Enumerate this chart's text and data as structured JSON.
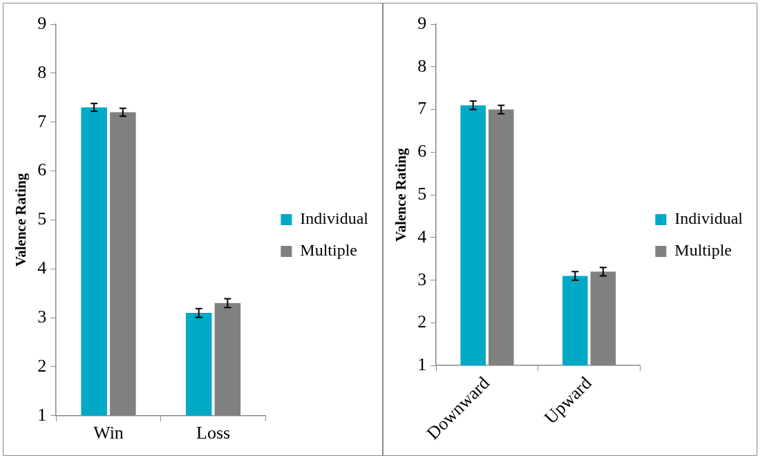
{
  "chart_data": [
    {
      "type": "bar",
      "ylabel": "Valence Rating",
      "categories": [
        "Win",
        "Loss"
      ],
      "ylim": [
        1,
        9
      ],
      "yticks": [
        1,
        2,
        3,
        4,
        5,
        6,
        7,
        8,
        9
      ],
      "grid": false,
      "legend": "right",
      "series": [
        {
          "name": "Individual",
          "color": "#00a9c6",
          "values": [
            7.3,
            3.1
          ],
          "errors": [
            0.08,
            0.09
          ]
        },
        {
          "name": "Multiple",
          "color": "#808080",
          "values": [
            7.2,
            3.3
          ],
          "errors": [
            0.08,
            0.09
          ]
        }
      ]
    },
    {
      "type": "bar",
      "ylabel": "Valence Rating",
      "categories": [
        "Downward",
        "Upward"
      ],
      "ylim": [
        1,
        9
      ],
      "yticks": [
        1,
        2,
        3,
        4,
        5,
        6,
        7,
        8,
        9
      ],
      "grid": false,
      "legend": "right",
      "series": [
        {
          "name": "Individual",
          "color": "#00a9c6",
          "values": [
            7.1,
            3.1
          ],
          "errors": [
            0.1,
            0.1
          ]
        },
        {
          "name": "Multiple",
          "color": "#808080",
          "values": [
            7.0,
            3.2
          ],
          "errors": [
            0.1,
            0.1
          ]
        }
      ]
    }
  ]
}
